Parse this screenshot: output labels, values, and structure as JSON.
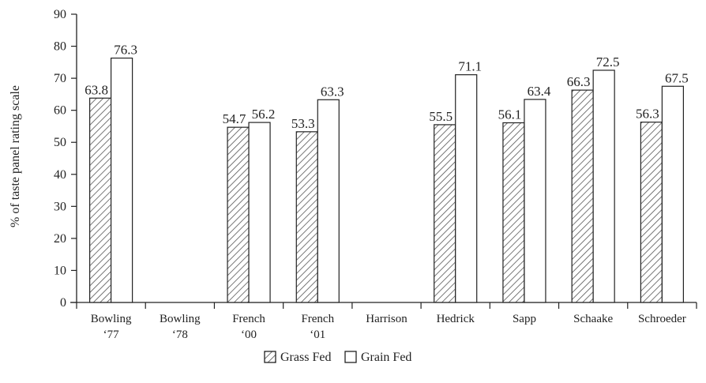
{
  "chart_data": {
    "type": "bar",
    "categories": [
      [
        "Bowling",
        "‘77"
      ],
      [
        "Bowling",
        "‘78"
      ],
      [
        "French",
        "‘00"
      ],
      [
        "French",
        "‘01"
      ],
      [
        "Harrison"
      ],
      [
        "Hedrick"
      ],
      [
        "Sapp"
      ],
      [
        "Schaake"
      ],
      [
        "Schroeder"
      ]
    ],
    "series": [
      {
        "name": "Grass Fed",
        "pattern": "diagonal-hatch",
        "values": [
          63.8,
          null,
          54.7,
          53.3,
          null,
          55.5,
          56.1,
          66.3,
          56.3
        ],
        "labels": [
          "63.8",
          "",
          "54.7",
          "53.3",
          "",
          "55.5",
          "56.1",
          "66.3",
          "56.3"
        ]
      },
      {
        "name": "Grain Fed",
        "pattern": "solid-white",
        "values": [
          76.3,
          null,
          56.2,
          63.3,
          null,
          71.1,
          63.4,
          72.5,
          67.5
        ],
        "labels": [
          "76.3",
          "",
          "56.2",
          "63.3",
          "",
          "71.1",
          "63.4",
          "72.5",
          "67.5"
        ]
      }
    ],
    "ylabel": "% of taste panel rating scale",
    "ylim": [
      0,
      90
    ],
    "yticks": [
      "0",
      "10",
      "20",
      "30",
      "40",
      "50",
      "60",
      "70",
      "80",
      "90"
    ],
    "grid": false,
    "legend": "bottom-center",
    "colors": {
      "stroke": "#222222",
      "fill": "#ffffff",
      "hatch": "#555555"
    }
  }
}
